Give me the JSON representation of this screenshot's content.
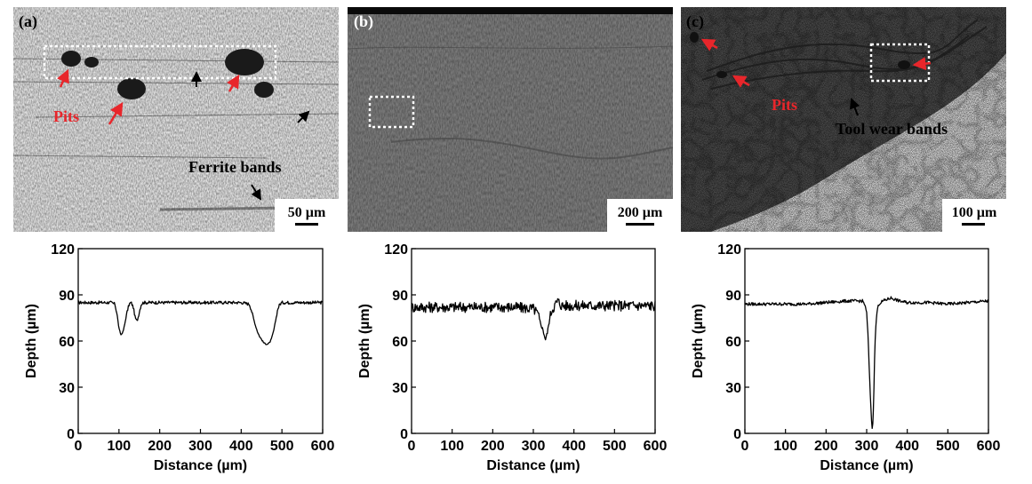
{
  "colors": {
    "annotation_red": "#e8262b",
    "annotation_black": "#000000",
    "micro_light": "#d9d9d9",
    "micro_mid": "#6e6e6e",
    "micro_dark": "#3a3a3a"
  },
  "panels": [
    {
      "label": "(a)",
      "scalebar": "50 µm",
      "annotations": [
        {
          "text": "Pits",
          "color": "red"
        },
        {
          "text": "Ferrite bands",
          "color": "black"
        }
      ]
    },
    {
      "label": "(b)",
      "scalebar": "200 µm",
      "annotations": []
    },
    {
      "label": "(c)",
      "scalebar": "100 µm",
      "annotations": [
        {
          "text": "Pits",
          "color": "red"
        },
        {
          "text": "Tool wear bands",
          "color": "black"
        }
      ]
    }
  ],
  "chart_data": [
    {
      "type": "line",
      "xlabel": "Distance (µm)",
      "ylabel": "Depth (µm)",
      "xlim": [
        0,
        600
      ],
      "ylim": [
        0,
        120
      ],
      "xticks": [
        0,
        100,
        200,
        300,
        400,
        500,
        600
      ],
      "yticks": [
        0,
        30,
        60,
        90,
        120
      ],
      "noise": 2,
      "series": [
        {
          "x": [
            0,
            40,
            80,
            90,
            95,
            100,
            105,
            110,
            115,
            120,
            125,
            130,
            135,
            140,
            145,
            150,
            155,
            160,
            200,
            250,
            300,
            350,
            400,
            420,
            425,
            430,
            435,
            440,
            445,
            450,
            455,
            460,
            465,
            470,
            475,
            480,
            485,
            490,
            495,
            500,
            550,
            600
          ],
          "y": [
            85,
            85,
            85,
            84,
            78,
            68,
            64,
            66,
            72,
            79,
            84,
            85,
            82,
            75,
            73,
            79,
            84,
            85,
            85,
            85,
            85,
            85,
            85,
            84,
            80,
            75,
            70,
            66,
            63,
            61,
            59,
            58,
            58,
            59,
            62,
            67,
            74,
            81,
            84,
            85,
            85,
            85
          ]
        }
      ]
    },
    {
      "type": "line",
      "xlabel": "Distance (µm)",
      "ylabel": "Depth (µm)",
      "xlim": [
        0,
        600
      ],
      "ylim": [
        0,
        120
      ],
      "xticks": [
        0,
        100,
        200,
        300,
        400,
        500,
        600
      ],
      "yticks": [
        0,
        30,
        60,
        90,
        120
      ],
      "noise": 7,
      "series": [
        {
          "x": [
            0,
            50,
            100,
            150,
            200,
            250,
            300,
            310,
            315,
            320,
            325,
            330,
            335,
            340,
            345,
            350,
            355,
            360,
            370,
            400,
            450,
            500,
            550,
            600
          ],
          "y": [
            82,
            82,
            82,
            82,
            82,
            82,
            81,
            78,
            74,
            70,
            66,
            61,
            66,
            74,
            80,
            82,
            84,
            86,
            83,
            83,
            83,
            83,
            83,
            83
          ]
        }
      ]
    },
    {
      "type": "line",
      "xlabel": "Distance (µm)",
      "ylabel": "Depth (µm)",
      "xlim": [
        0,
        600
      ],
      "ylim": [
        0,
        120
      ],
      "xticks": [
        0,
        100,
        200,
        300,
        400,
        500,
        600
      ],
      "yticks": [
        0,
        30,
        60,
        90,
        120
      ],
      "noise": 2,
      "series": [
        {
          "x": [
            0,
            50,
            100,
            150,
            200,
            250,
            280,
            290,
            295,
            300,
            303,
            306,
            309,
            312,
            314,
            316,
            318,
            320,
            323,
            326,
            330,
            335,
            340,
            350,
            360,
            380,
            400,
            450,
            500,
            550,
            600
          ],
          "y": [
            84,
            84,
            84,
            84,
            85,
            86,
            86,
            86,
            84,
            78,
            65,
            45,
            25,
            8,
            2,
            10,
            30,
            55,
            72,
            80,
            84,
            85,
            86,
            87,
            88,
            86,
            85,
            85,
            84,
            85,
            86
          ]
        }
      ]
    }
  ]
}
